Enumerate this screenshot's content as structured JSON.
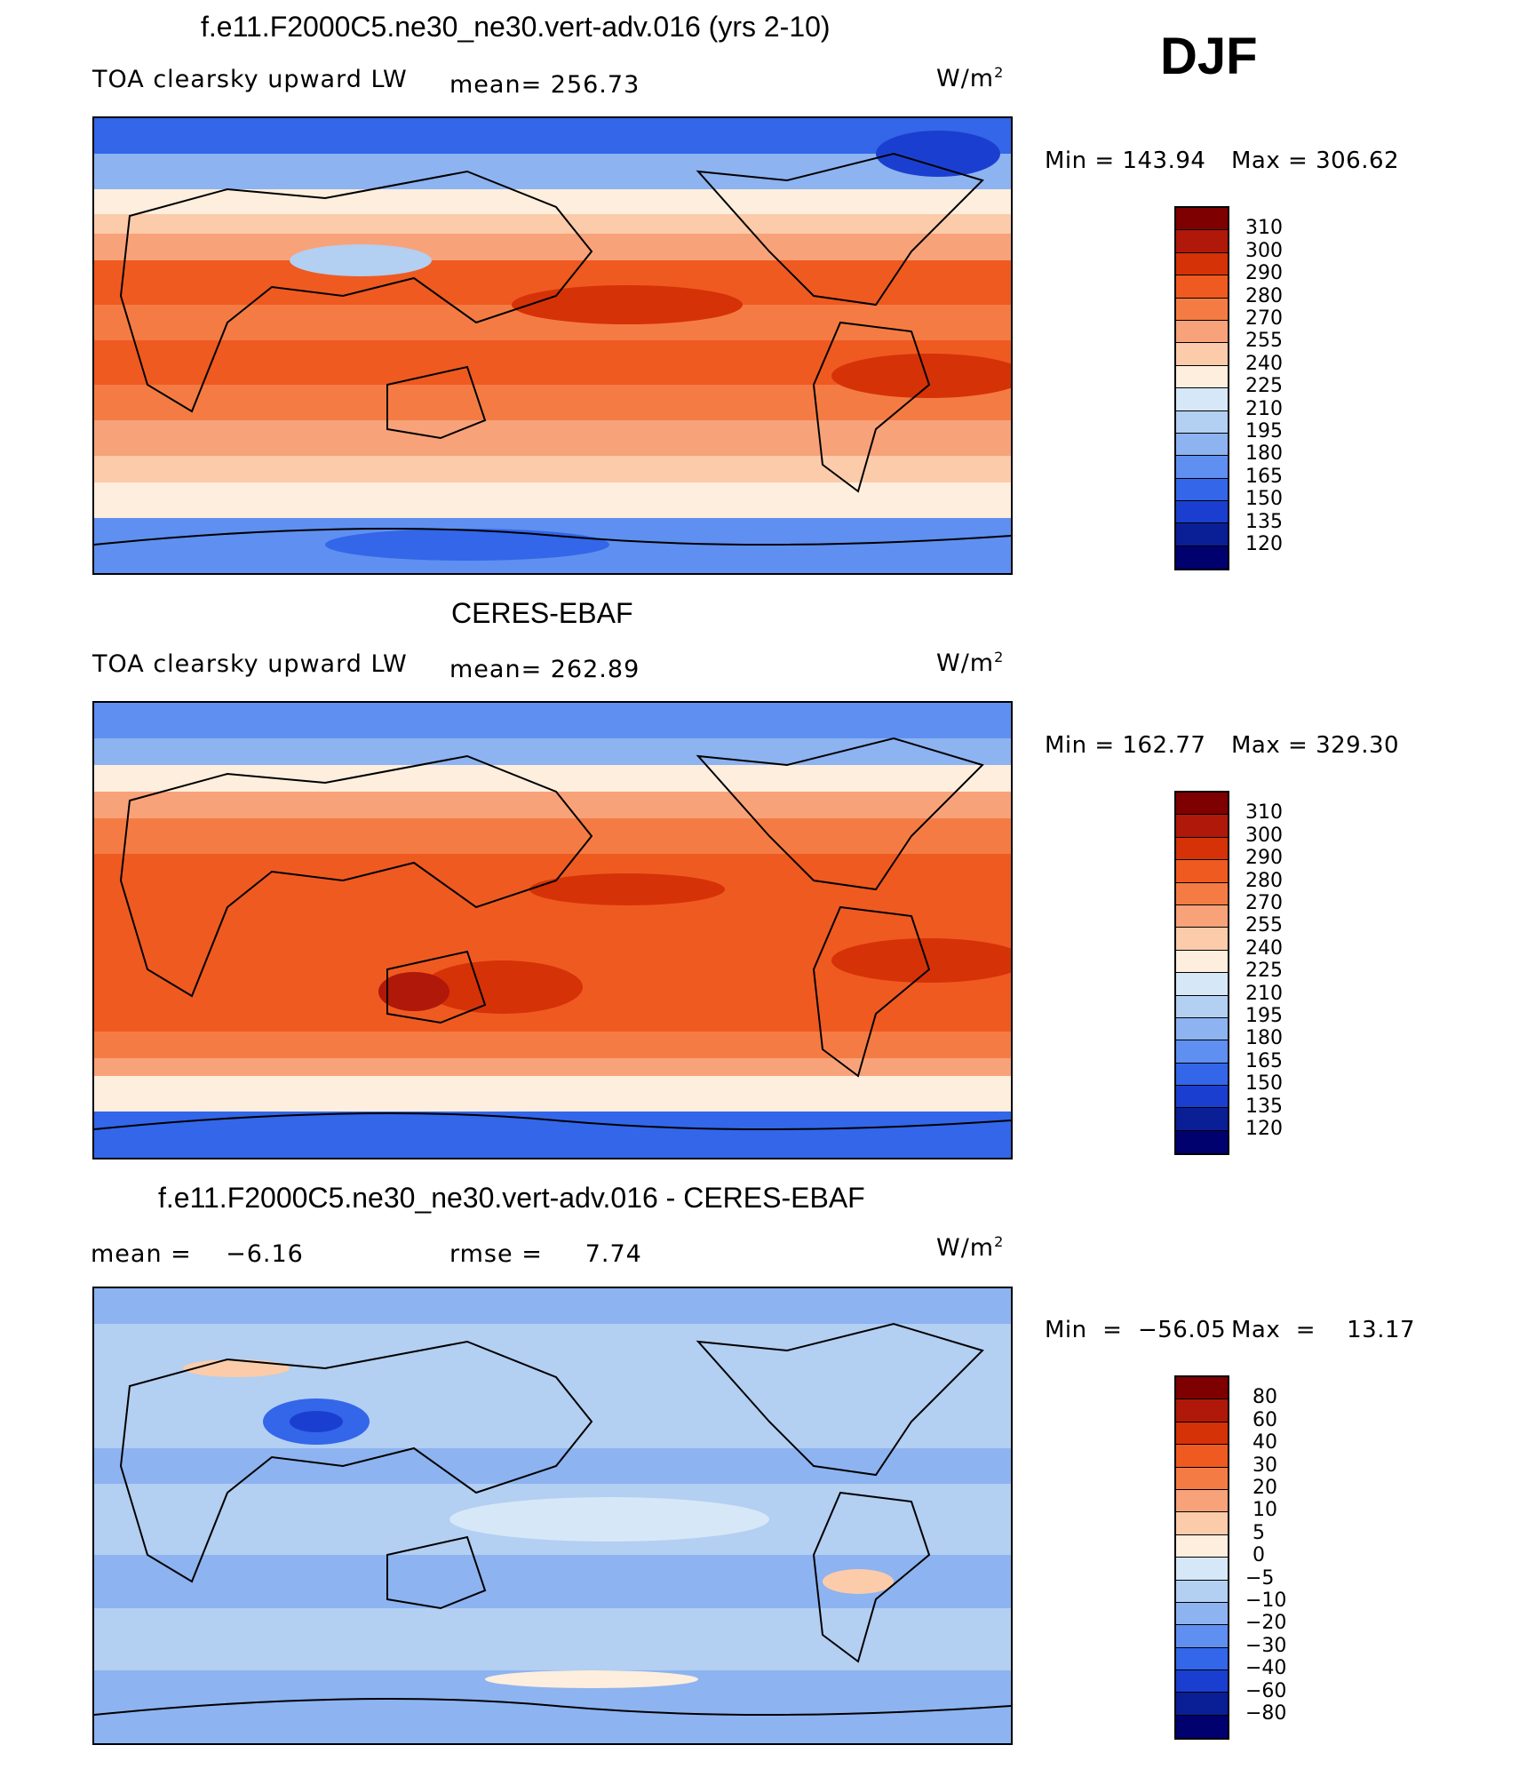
{
  "season": "DJF",
  "panels": [
    {
      "title": "f.e11.F2000C5.ne30_ne30.vert-adv.016 (yrs 2-10)",
      "left_label": "TOA clearsky upward LW",
      "center_label": "mean= 256.73",
      "units_base": "W/m",
      "units_exp": "2",
      "min_text": "Min  =  143.94",
      "max_text": "Max  =  306.62",
      "colorbar_levels": [
        "310",
        "300",
        "290",
        "280",
        "270",
        "255",
        "240",
        "225",
        "210",
        "195",
        "180",
        "165",
        "150",
        "135",
        "120"
      ]
    },
    {
      "title": "CERES-EBAF",
      "left_label": "TOA clearsky upward LW",
      "center_label": "mean= 262.89",
      "units_base": "W/m",
      "units_exp": "2",
      "min_text": "Min  =  162.77",
      "max_text": "Max  =  329.30",
      "colorbar_levels": [
        "310",
        "300",
        "290",
        "280",
        "270",
        "255",
        "240",
        "225",
        "210",
        "195",
        "180",
        "165",
        "150",
        "135",
        "120"
      ]
    },
    {
      "title": "f.e11.F2000C5.ne30_ne30.vert-adv.016 - CERES-EBAF",
      "left_label": "mean =    −6.16",
      "center_label": "rmse =     7.74",
      "units_base": "W/m",
      "units_exp": "2",
      "min_text": "Min  =  −56.05",
      "max_text": "Max  =    13.17",
      "colorbar_levels": [
        "80",
        "60",
        "40",
        "30",
        "20",
        "10",
        "5",
        "0",
        "−5",
        "−10",
        "−20",
        "−30",
        "−40",
        "−60",
        "−80"
      ]
    }
  ],
  "colors": {
    "abs_scale": [
      "#7f0000",
      "#b0180a",
      "#d63207",
      "#ef5a21",
      "#f47c44",
      "#f8a27a",
      "#fbcbaa",
      "#fdeede",
      "#d6e7f7",
      "#b3cff2",
      "#8db3f0",
      "#5f8ff0",
      "#3366e8",
      "#1a3fd0",
      "#0a1e96",
      "#00006e"
    ],
    "diff_scale": [
      "#7f0000",
      "#b0180a",
      "#d63207",
      "#ef5a21",
      "#f47c44",
      "#f8a27a",
      "#fbcbaa",
      "#fdeede",
      "#d6e7f7",
      "#b3cff2",
      "#8db3f0",
      "#5f8ff0",
      "#3366e8",
      "#1a3fd0",
      "#0a1e96",
      "#00006e"
    ]
  }
}
